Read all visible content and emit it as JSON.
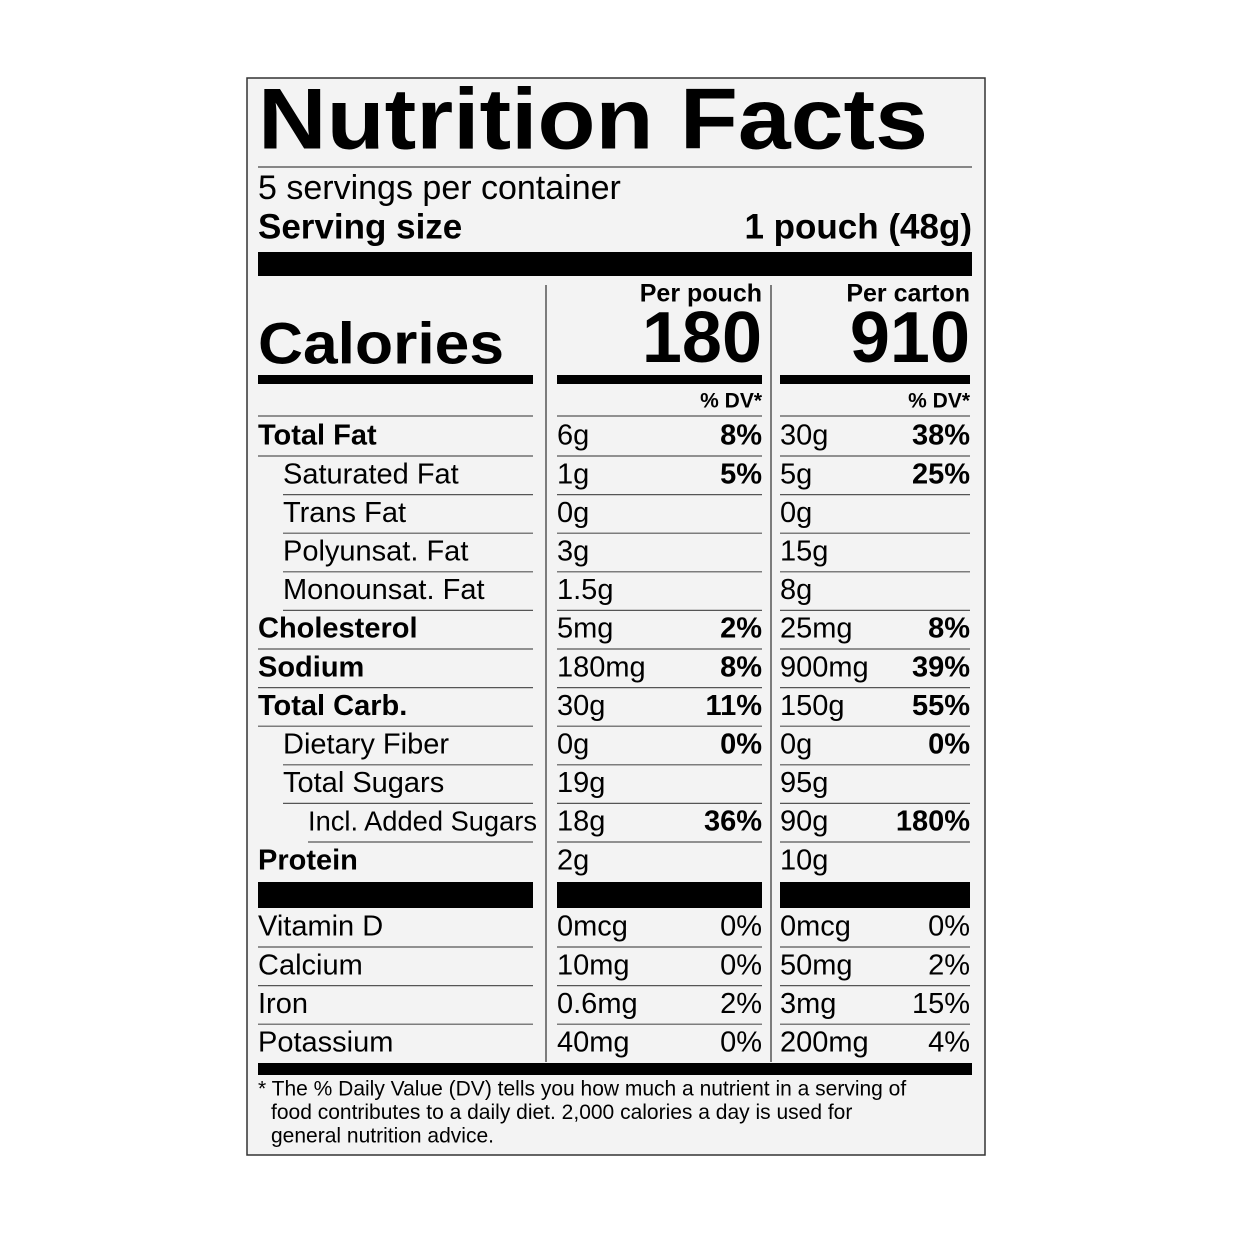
{
  "title": "Nutrition Facts",
  "servings": "5 servings per container",
  "serving_size": {
    "label": "Serving size",
    "value": "1 pouch (48g)"
  },
  "calories_label": "Calories",
  "columns": [
    {
      "header": "Per pouch",
      "calories": "180",
      "dv_header": "% DV*"
    },
    {
      "header": "Per carton",
      "calories": "910",
      "dv_header": "% DV*"
    }
  ],
  "nutrients": [
    {
      "name": "Total Fat",
      "level": 0,
      "values": [
        [
          "6g",
          "8%"
        ],
        [
          "30g",
          "38%"
        ]
      ]
    },
    {
      "name": "Saturated Fat",
      "level": 1,
      "values": [
        [
          "1g",
          "5%"
        ],
        [
          "5g",
          "25%"
        ]
      ]
    },
    {
      "name": "Trans Fat",
      "level": 1,
      "values": [
        [
          "0g",
          null
        ],
        [
          "0g",
          null
        ]
      ]
    },
    {
      "name": "Polyunsat. Fat",
      "level": 1,
      "values": [
        [
          "3g",
          null
        ],
        [
          "15g",
          null
        ]
      ]
    },
    {
      "name": "Monounsat. Fat",
      "level": 1,
      "values": [
        [
          "1.5g",
          null
        ],
        [
          "8g",
          null
        ]
      ]
    },
    {
      "name": "Cholesterol",
      "level": 0,
      "values": [
        [
          "5mg",
          "2%"
        ],
        [
          "25mg",
          "8%"
        ]
      ]
    },
    {
      "name": "Sodium",
      "level": 0,
      "values": [
        [
          "180mg",
          "8%"
        ],
        [
          "900mg",
          "39%"
        ]
      ]
    },
    {
      "name": "Total Carb.",
      "level": 0,
      "values": [
        [
          "30g",
          "11%"
        ],
        [
          "150g",
          "55%"
        ]
      ]
    },
    {
      "name": "Dietary Fiber",
      "level": 1,
      "values": [
        [
          "0g",
          "0%"
        ],
        [
          "0g",
          "0%"
        ]
      ]
    },
    {
      "name": "Total Sugars",
      "level": 1,
      "values": [
        [
          "19g",
          null
        ],
        [
          "95g",
          null
        ]
      ]
    },
    {
      "name": "Incl. Added Sugars",
      "level": 2,
      "values": [
        [
          "18g",
          "36%"
        ],
        [
          "90g",
          "180%"
        ]
      ]
    },
    {
      "name": "Protein",
      "level": 0,
      "values": [
        [
          "2g",
          null
        ],
        [
          "10g",
          null
        ]
      ]
    }
  ],
  "vitamins": [
    {
      "name": "Vitamin D",
      "values": [
        [
          "0mcg",
          "0%"
        ],
        [
          "0mcg",
          "0%"
        ]
      ]
    },
    {
      "name": "Calcium",
      "values": [
        [
          "10mg",
          "0%"
        ],
        [
          "50mg",
          "2%"
        ]
      ]
    },
    {
      "name": "Iron",
      "values": [
        [
          "0.6mg",
          "2%"
        ],
        [
          "3mg",
          "15%"
        ]
      ]
    },
    {
      "name": "Potassium",
      "values": [
        [
          "40mg",
          "0%"
        ],
        [
          "200mg",
          "4%"
        ]
      ]
    }
  ],
  "footnote": [
    "* The % Daily Value (DV) tells you how much a nutrient in a serving of",
    "food contributes to a daily diet. 2,000 calories a day is used for",
    "general nutrition advice."
  ]
}
